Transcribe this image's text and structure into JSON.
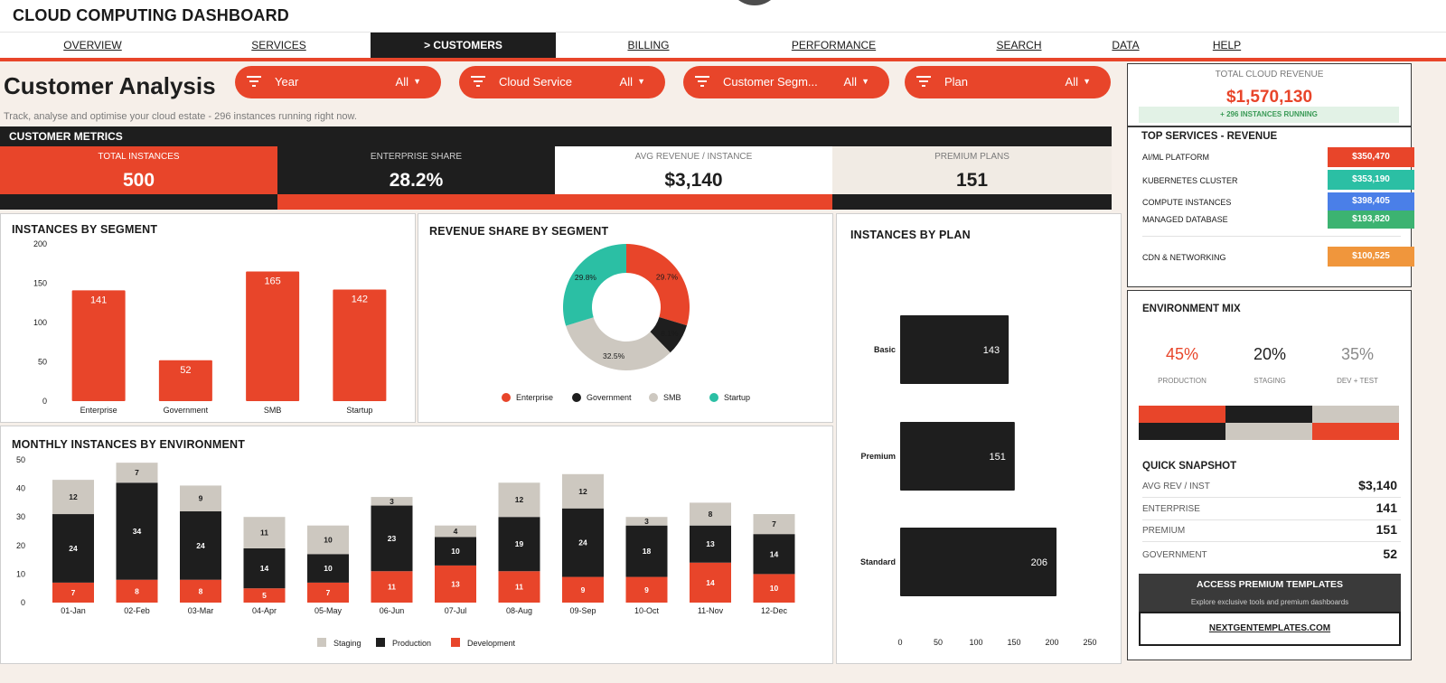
{
  "app_title": "CLOUD COMPUTING DASHBOARD",
  "nav": [
    "OVERVIEW",
    "SERVICES",
    "> CUSTOMERS",
    "BILLING",
    "PERFORMANCE",
    "SEARCH",
    "DATA",
    "HELP"
  ],
  "page": {
    "title": "Customer Analysis",
    "subtitle": "Track, analyse and optimise your cloud estate  -  296 instances running right now."
  },
  "filters": [
    {
      "label": "Year",
      "value": "All"
    },
    {
      "label": "Cloud Service",
      "value": "All"
    },
    {
      "label": "Customer Segm...",
      "value": "All"
    },
    {
      "label": "Plan",
      "value": "All"
    }
  ],
  "metrics": {
    "header": "CUSTOMER METRICS",
    "kpis": [
      {
        "label": "TOTAL INSTANCES",
        "value": "500"
      },
      {
        "label": "ENTERPRISE SHARE",
        "value": "28.2%"
      },
      {
        "label": "AVG REVENUE / INSTANCE",
        "value": "$3,140"
      },
      {
        "label": "PREMIUM PLANS",
        "value": "151"
      }
    ]
  },
  "revenue": {
    "label": "TOTAL CLOUD REVENUE",
    "value": "$1,570,130",
    "badge": "+ 296 INSTANCES RUNNING"
  },
  "top_services": {
    "title": "TOP SERVICES - REVENUE",
    "items": [
      {
        "name": "AI/ML PLATFORM",
        "value": "$350,470",
        "color": "#e8452a"
      },
      {
        "name": "KUBERNETES CLUSTER",
        "value": "$353,190",
        "color": "#2bbfa4"
      },
      {
        "name": "COMPUTE INSTANCES",
        "value": "$398,405",
        "color": "#4a7fe8"
      },
      {
        "name": "MANAGED DATABASE",
        "value": "$193,820",
        "color": "#3cb371"
      },
      {
        "name": "CDN & NETWORKING",
        "value": "$100,525",
        "color": "#f0963c"
      }
    ]
  },
  "environment_mix": {
    "title": "ENVIRONMENT MIX",
    "items": [
      {
        "pct": "45%",
        "label": "PRODUCTION",
        "color": "#e8452a"
      },
      {
        "pct": "20%",
        "label": "STAGING",
        "color": "#1e1e1e"
      },
      {
        "pct": "35%",
        "label": "DEV + TEST",
        "color": "#8a8a8a"
      }
    ]
  },
  "snapshot": {
    "title": "QUICK SNAPSHOT",
    "rows": [
      {
        "label": "AVG REV / INST",
        "value": "$3,140"
      },
      {
        "label": "ENTERPRISE",
        "value": "141"
      },
      {
        "label": "PREMIUM",
        "value": "151"
      },
      {
        "label": "GOVERNMENT",
        "value": "52"
      }
    ]
  },
  "promo": {
    "title": "ACCESS PREMIUM TEMPLATES",
    "desc": "Explore exclusive tools and premium dashboards",
    "link": "NEXTGENTEMPLATES.COM"
  },
  "colors": {
    "accent": "#e8452a",
    "dark": "#1e1e1e",
    "light": "#cdc8c0",
    "teal": "#2bbfa4"
  },
  "chart_data": [
    {
      "type": "bar",
      "title": "INSTANCES BY SEGMENT",
      "categories": [
        "Enterprise",
        "Government",
        "SMB",
        "Startup"
      ],
      "values": [
        141,
        52,
        165,
        142
      ],
      "yticks": [
        0,
        50,
        100,
        150,
        200
      ],
      "ylim": [
        0,
        200
      ]
    },
    {
      "type": "pie",
      "title": "REVENUE SHARE BY SEGMENT",
      "slices": [
        {
          "name": "Enterprise",
          "value": 29.7,
          "label": "29.7%",
          "color": "#e8452a"
        },
        {
          "name": "Government",
          "value": 8.1,
          "label": "8.1%",
          "color": "#1e1e1e"
        },
        {
          "name": "SMB",
          "value": 32.5,
          "label": "32.5%",
          "color": "#cdc8c0"
        },
        {
          "name": "Startup",
          "value": 29.8,
          "label": "29.8%",
          "color": "#2bbfa4"
        }
      ],
      "legend": "bottom"
    },
    {
      "type": "bar",
      "orientation": "horizontal",
      "title": "INSTANCES BY PLAN",
      "categories": [
        "Basic",
        "Premium",
        "Standard"
      ],
      "values": [
        143,
        151,
        206
      ],
      "xticks": [
        0,
        50,
        100,
        150,
        200,
        250
      ],
      "xlim": [
        0,
        250
      ]
    },
    {
      "type": "bar",
      "stacked": true,
      "title": "MONTHLY INSTANCES BY ENVIRONMENT",
      "categories": [
        "01-Jan",
        "02-Feb",
        "03-Mar",
        "04-Apr",
        "05-May",
        "06-Jun",
        "07-Jul",
        "08-Aug",
        "09-Sep",
        "10-Oct",
        "11-Nov",
        "12-Dec"
      ],
      "series": [
        {
          "name": "Development",
          "color": "#e8452a",
          "values": [
            7,
            8,
            8,
            5,
            7,
            11,
            13,
            11,
            9,
            9,
            14,
            10
          ]
        },
        {
          "name": "Production",
          "color": "#1e1e1e",
          "values": [
            24,
            34,
            24,
            14,
            10,
            23,
            10,
            19,
            24,
            18,
            13,
            14
          ]
        },
        {
          "name": "Staging",
          "color": "#cdc8c0",
          "values": [
            12,
            7,
            9,
            11,
            10,
            3,
            4,
            12,
            12,
            3,
            8,
            7
          ]
        }
      ],
      "legend_order": [
        "Staging",
        "Production",
        "Development"
      ],
      "yticks": [
        0,
        10,
        20,
        30,
        40,
        50
      ],
      "ylim": [
        0,
        50
      ]
    }
  ]
}
